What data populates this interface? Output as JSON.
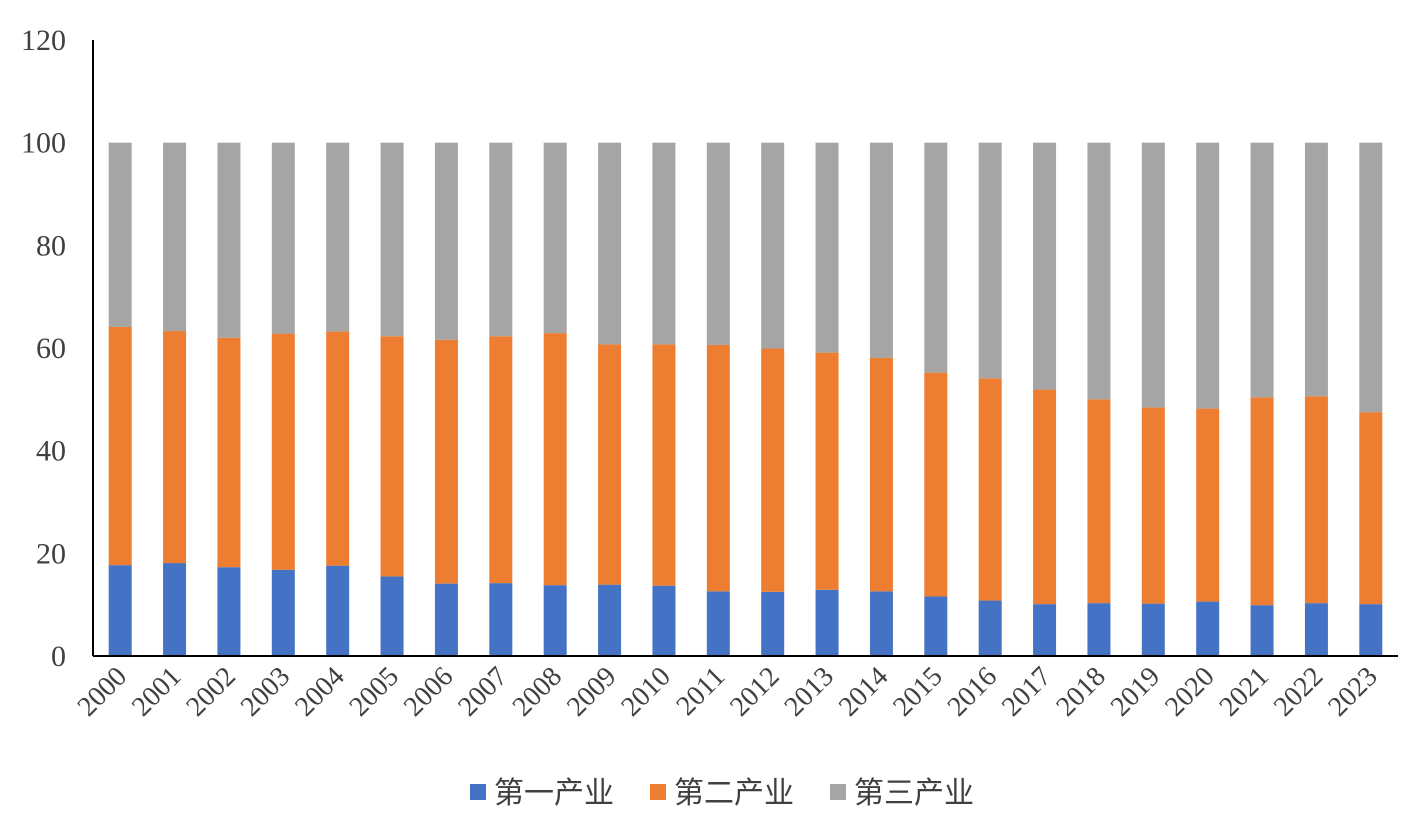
{
  "chart_data": {
    "type": "bar",
    "stacked": true,
    "categories": [
      "2000",
      "2001",
      "2002",
      "2003",
      "2004",
      "2005",
      "2006",
      "2007",
      "2008",
      "2009",
      "2010",
      "2011",
      "2012",
      "2013",
      "2014",
      "2015",
      "2016",
      "2017",
      "2018",
      "2019",
      "2020",
      "2021",
      "2022",
      "2023"
    ],
    "series": [
      {
        "name": "第一产业",
        "color": "#4472C4",
        "values": [
          17.7,
          18.1,
          17.3,
          16.8,
          17.6,
          15.5,
          14.1,
          14.2,
          13.8,
          13.9,
          13.7,
          12.6,
          12.5,
          12.9,
          12.6,
          11.6,
          10.8,
          10.1,
          10.3,
          10.2,
          10.6,
          9.9,
          10.3,
          10.1
        ]
      },
      {
        "name": "第二产业",
        "color": "#ED7D31",
        "values": [
          46.4,
          45.2,
          44.7,
          46.0,
          45.6,
          46.8,
          47.5,
          48.1,
          49.1,
          46.8,
          47.0,
          48.0,
          47.4,
          46.2,
          45.5,
          43.6,
          43.3,
          41.8,
          39.7,
          38.2,
          37.6,
          40.5,
          40.3,
          37.4
        ]
      },
      {
        "name": "第三产业",
        "color": "#A5A5A5",
        "values": [
          35.9,
          36.7,
          38.0,
          37.2,
          36.8,
          37.7,
          38.4,
          37.7,
          37.1,
          39.3,
          39.3,
          39.4,
          40.1,
          40.9,
          41.9,
          44.8,
          45.9,
          48.1,
          50.0,
          51.6,
          51.8,
          49.6,
          49.4,
          52.5
        ]
      }
    ],
    "ylim": [
      0,
      120
    ],
    "yticks": [
      0,
      20,
      40,
      60,
      80,
      100,
      120
    ],
    "grid": false,
    "legend_position": "bottom"
  }
}
